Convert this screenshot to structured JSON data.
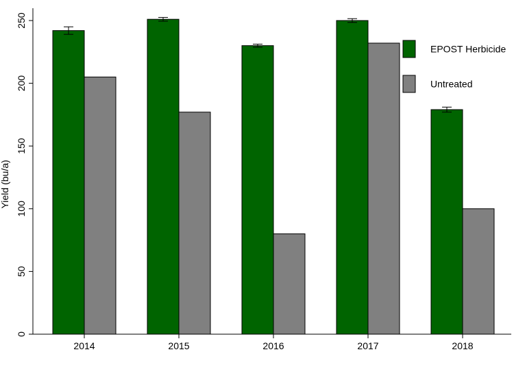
{
  "chart_data": {
    "type": "bar",
    "title": "",
    "xlabel": "",
    "ylabel": "Yield (bu/a)",
    "ylim": [
      0,
      250
    ],
    "yticks": [
      0,
      50,
      100,
      150,
      200,
      250
    ],
    "categories": [
      "2014",
      "2015",
      "2016",
      "2017",
      "2018"
    ],
    "series": [
      {
        "name": "EPOST Herbicide",
        "color": "#006400",
        "values": [
          242,
          251,
          230,
          250,
          179
        ],
        "error": [
          3,
          1.5,
          1.2,
          1.5,
          2
        ]
      },
      {
        "name": "Untreated",
        "color": "#808080",
        "values": [
          205,
          177,
          80,
          232,
          100
        ]
      }
    ],
    "legend_position": "top-right",
    "grid": false
  }
}
